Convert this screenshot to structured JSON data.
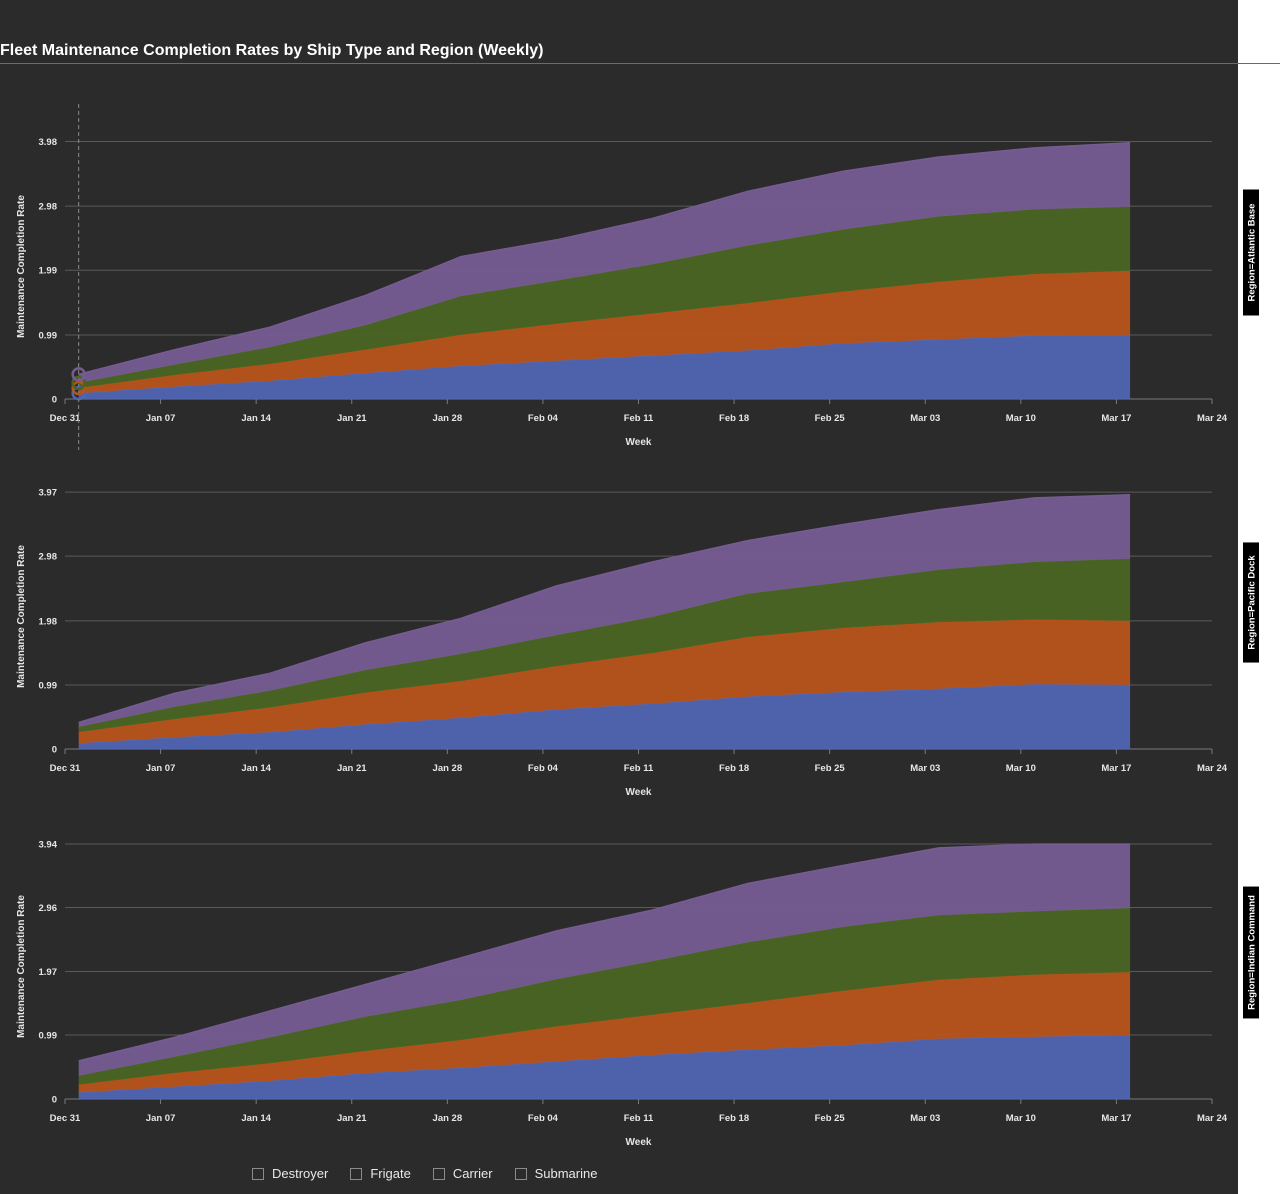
{
  "title": "Fleet Maintenance Completion Rates by Ship Type and Region (Weekly)",
  "legend": [
    {
      "label": "Destroyer"
    },
    {
      "label": "Frigate"
    },
    {
      "label": "Carrier"
    },
    {
      "label": "Submarine"
    }
  ],
  "colors": {
    "background": "#2b2b2b",
    "Destroyer": "#5065b3",
    "Frigate": "#b8531a",
    "Carrier": "#4a6523",
    "Submarine": "#765c92",
    "grid": "#5a5a5a",
    "facet_label_bg": "#000000"
  },
  "chart_data": [
    {
      "type": "area",
      "stacked": true,
      "facet": "Region=Atlantic Base",
      "xlabel": "Week",
      "ylabel": "Maintenance Completion Rate",
      "x_ticks": [
        "Dec 31",
        "Jan 07",
        "Jan 14",
        "Jan 21",
        "Jan 28",
        "Feb 04",
        "Feb 11",
        "Feb 18",
        "Feb 25",
        "Mar 03",
        "Mar 10",
        "Mar 17",
        "Mar 24"
      ],
      "y_ticks": [
        "0",
        "0.99",
        "1.99",
        "2.98",
        "3.98"
      ],
      "ylim": [
        0,
        4.25
      ],
      "x": [
        "2024-01-01",
        "2024-01-08",
        "2024-01-15",
        "2024-01-22",
        "2024-01-29",
        "2024-02-05",
        "2024-02-12",
        "2024-02-19",
        "2024-02-26",
        "2024-03-04",
        "2024-03-11",
        "2024-03-18"
      ],
      "series": [
        {
          "name": "Destroyer",
          "values": [
            0.09,
            0.19,
            0.28,
            0.4,
            0.51,
            0.59,
            0.67,
            0.75,
            0.86,
            0.92,
            0.98,
            0.99
          ]
        },
        {
          "name": "Frigate",
          "values": [
            0.08,
            0.18,
            0.26,
            0.36,
            0.48,
            0.57,
            0.65,
            0.73,
            0.8,
            0.89,
            0.95,
            0.99
          ]
        },
        {
          "name": "Carrier",
          "values": [
            0.08,
            0.16,
            0.26,
            0.38,
            0.6,
            0.67,
            0.76,
            0.89,
            0.96,
            1.01,
            1.0,
            0.99
          ]
        },
        {
          "name": "Submarine",
          "values": [
            0.13,
            0.23,
            0.31,
            0.46,
            0.61,
            0.63,
            0.71,
            0.84,
            0.9,
            0.92,
            0.95,
            0.99
          ]
        }
      ]
    },
    {
      "type": "area",
      "stacked": true,
      "facet": "Region=Pacific Dock",
      "xlabel": "Week",
      "ylabel": "Maintenance Completion Rate",
      "x_ticks": [
        "Dec 31",
        "Jan 07",
        "Jan 14",
        "Jan 21",
        "Jan 28",
        "Feb 04",
        "Feb 11",
        "Feb 18",
        "Feb 25",
        "Mar 03",
        "Mar 10",
        "Mar 17",
        "Mar 24"
      ],
      "y_ticks": [
        "0",
        "0.99",
        "1.98",
        "2.98",
        "3.97"
      ],
      "ylim": [
        0,
        4.25
      ],
      "x": [
        "2024-01-01",
        "2024-01-08",
        "2024-01-15",
        "2024-01-22",
        "2024-01-29",
        "2024-02-05",
        "2024-02-12",
        "2024-02-19",
        "2024-02-26",
        "2024-03-04",
        "2024-03-11",
        "2024-03-18"
      ],
      "series": [
        {
          "name": "Destroyer",
          "values": [
            0.09,
            0.18,
            0.26,
            0.38,
            0.48,
            0.61,
            0.7,
            0.81,
            0.88,
            0.93,
            1.0,
            0.99
          ]
        },
        {
          "name": "Frigate",
          "values": [
            0.17,
            0.28,
            0.38,
            0.49,
            0.57,
            0.67,
            0.78,
            0.92,
            0.99,
            1.03,
            1.0,
            0.99
          ]
        },
        {
          "name": "Carrier",
          "values": [
            0.08,
            0.19,
            0.26,
            0.35,
            0.42,
            0.48,
            0.56,
            0.67,
            0.71,
            0.81,
            0.89,
            0.96
          ]
        },
        {
          "name": "Submarine",
          "values": [
            0.07,
            0.21,
            0.27,
            0.42,
            0.55,
            0.76,
            0.85,
            0.82,
            0.89,
            0.93,
            0.99,
            0.99
          ]
        }
      ]
    },
    {
      "type": "area",
      "stacked": true,
      "facet": "Region=Indian Command",
      "xlabel": "Week",
      "ylabel": "Maintenance Completion Rate",
      "x_ticks": [
        "Dec 31",
        "Jan 07",
        "Jan 14",
        "Jan 21",
        "Jan 28",
        "Feb 04",
        "Feb 11",
        "Feb 18",
        "Feb 25",
        "Mar 03",
        "Mar 10",
        "Mar 17",
        "Mar 24"
      ],
      "y_ticks": [
        "0",
        "0.99",
        "1.97",
        "2.96",
        "3.94"
      ],
      "ylim": [
        0,
        4.25
      ],
      "x": [
        "2024-01-01",
        "2024-01-08",
        "2024-01-15",
        "2024-01-22",
        "2024-01-29",
        "2024-02-05",
        "2024-02-12",
        "2024-02-19",
        "2024-02-26",
        "2024-03-04",
        "2024-03-11",
        "2024-03-18"
      ],
      "series": [
        {
          "name": "Destroyer",
          "values": [
            0.1,
            0.19,
            0.28,
            0.4,
            0.48,
            0.58,
            0.68,
            0.76,
            0.83,
            0.93,
            0.96,
            0.99
          ]
        },
        {
          "name": "Frigate",
          "values": [
            0.12,
            0.21,
            0.27,
            0.34,
            0.43,
            0.54,
            0.62,
            0.72,
            0.84,
            0.91,
            0.96,
            0.97
          ]
        },
        {
          "name": "Carrier",
          "values": [
            0.14,
            0.25,
            0.4,
            0.53,
            0.62,
            0.73,
            0.83,
            0.94,
            0.99,
            1.0,
            0.98,
            0.99
          ]
        },
        {
          "name": "Submarine",
          "values": [
            0.23,
            0.3,
            0.41,
            0.5,
            0.65,
            0.75,
            0.79,
            0.91,
            0.95,
            1.04,
            1.04,
            0.99
          ]
        }
      ]
    }
  ]
}
